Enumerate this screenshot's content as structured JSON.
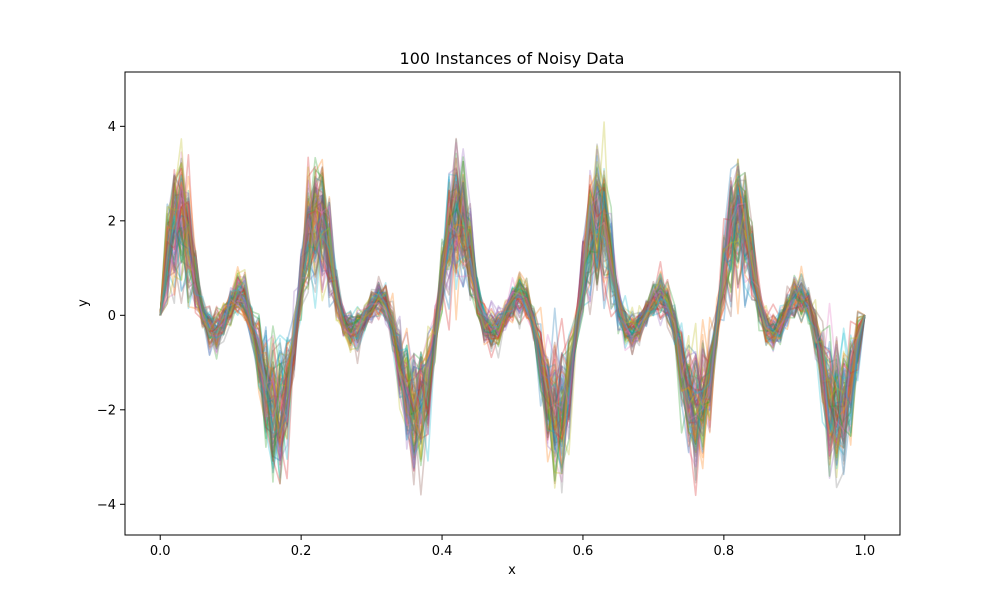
{
  "chart_data": {
    "type": "line",
    "title": "100 Instances of Noisy Data",
    "xlabel": "x",
    "ylabel": "y",
    "xlim": [
      -0.05,
      1.05
    ],
    "ylim": [
      -4.65,
      5.15
    ],
    "xticks": [
      0.0,
      0.2,
      0.4,
      0.6,
      0.8,
      1.0
    ],
    "xtick_labels": [
      "0.0",
      "0.2",
      "0.4",
      "0.6",
      "0.8",
      "1.0"
    ],
    "yticks": [
      -4,
      -2,
      0,
      2,
      4
    ],
    "ytick_labels": [
      "−4",
      "−2",
      "0",
      "2",
      "4"
    ],
    "grid": false,
    "legend": "none",
    "instance_count": 100,
    "line_alpha": 0.3,
    "colors": [
      "#1f77b4",
      "#ff7f0e",
      "#2ca02c",
      "#d62728",
      "#9467bd",
      "#8c564b",
      "#e377c2",
      "#7f7f7f",
      "#bcbd22",
      "#17becf"
    ],
    "base_curve": {
      "x": [
        0.0,
        0.01,
        0.02,
        0.03,
        0.04,
        0.05,
        0.06,
        0.07,
        0.08,
        0.09,
        0.1,
        0.11,
        0.12,
        0.13,
        0.14,
        0.15,
        0.16,
        0.17,
        0.18,
        0.19,
        0.2,
        0.21,
        0.22,
        0.23,
        0.24,
        0.25,
        0.26,
        0.27,
        0.28,
        0.29,
        0.3,
        0.31,
        0.32,
        0.33,
        0.34,
        0.35,
        0.36,
        0.37,
        0.38,
        0.39,
        0.4,
        0.41,
        0.42,
        0.43,
        0.44,
        0.45,
        0.46,
        0.47,
        0.48,
        0.49,
        0.5,
        0.51,
        0.52,
        0.53,
        0.54,
        0.55,
        0.56,
        0.57,
        0.58,
        0.59,
        0.6,
        0.61,
        0.62,
        0.63,
        0.64,
        0.65,
        0.66,
        0.67,
        0.68,
        0.69,
        0.7,
        0.71,
        0.72,
        0.73,
        0.74,
        0.75,
        0.76,
        0.77,
        0.78,
        0.79,
        0.8,
        0.81,
        0.82,
        0.83,
        0.84,
        0.85,
        0.86,
        0.87,
        0.88,
        0.89,
        0.9,
        0.91,
        0.92,
        0.93,
        0.94,
        0.95,
        0.96,
        0.97,
        0.98,
        0.99,
        1.0
      ],
      "y": [
        0.0,
        1.35,
        1.95,
        2.05,
        1.6,
        0.75,
        0.05,
        -0.3,
        -0.35,
        -0.1,
        0.2,
        0.45,
        0.4,
        -0.15,
        -0.9,
        -1.6,
        -1.95,
        -2.0,
        -1.6,
        -0.55,
        0.7,
        1.6,
        2.0,
        2.0,
        1.4,
        0.45,
        -0.15,
        -0.35,
        -0.3,
        -0.05,
        0.2,
        0.35,
        0.25,
        -0.25,
        -1.0,
        -1.65,
        -2.0,
        -2.0,
        -1.5,
        -0.4,
        0.8,
        1.7,
        2.05,
        1.95,
        1.3,
        0.35,
        -0.2,
        -0.35,
        -0.3,
        0.0,
        0.3,
        0.45,
        0.3,
        -0.2,
        -0.95,
        -1.7,
        -2.0,
        -2.0,
        -1.45,
        -0.35,
        0.85,
        1.75,
        2.05,
        1.9,
        1.2,
        0.3,
        -0.25,
        -0.35,
        -0.25,
        0.05,
        0.3,
        0.45,
        0.25,
        -0.25,
        -1.0,
        -1.75,
        -2.0,
        -1.95,
        -1.35,
        -0.25,
        0.95,
        1.8,
        2.05,
        1.85,
        1.15,
        0.25,
        -0.25,
        -0.35,
        -0.2,
        0.1,
        0.35,
        0.4,
        0.2,
        -0.35,
        -1.05,
        -1.8,
        -2.05,
        -1.9,
        -1.3,
        -0.6,
        0.0
      ]
    }
  }
}
